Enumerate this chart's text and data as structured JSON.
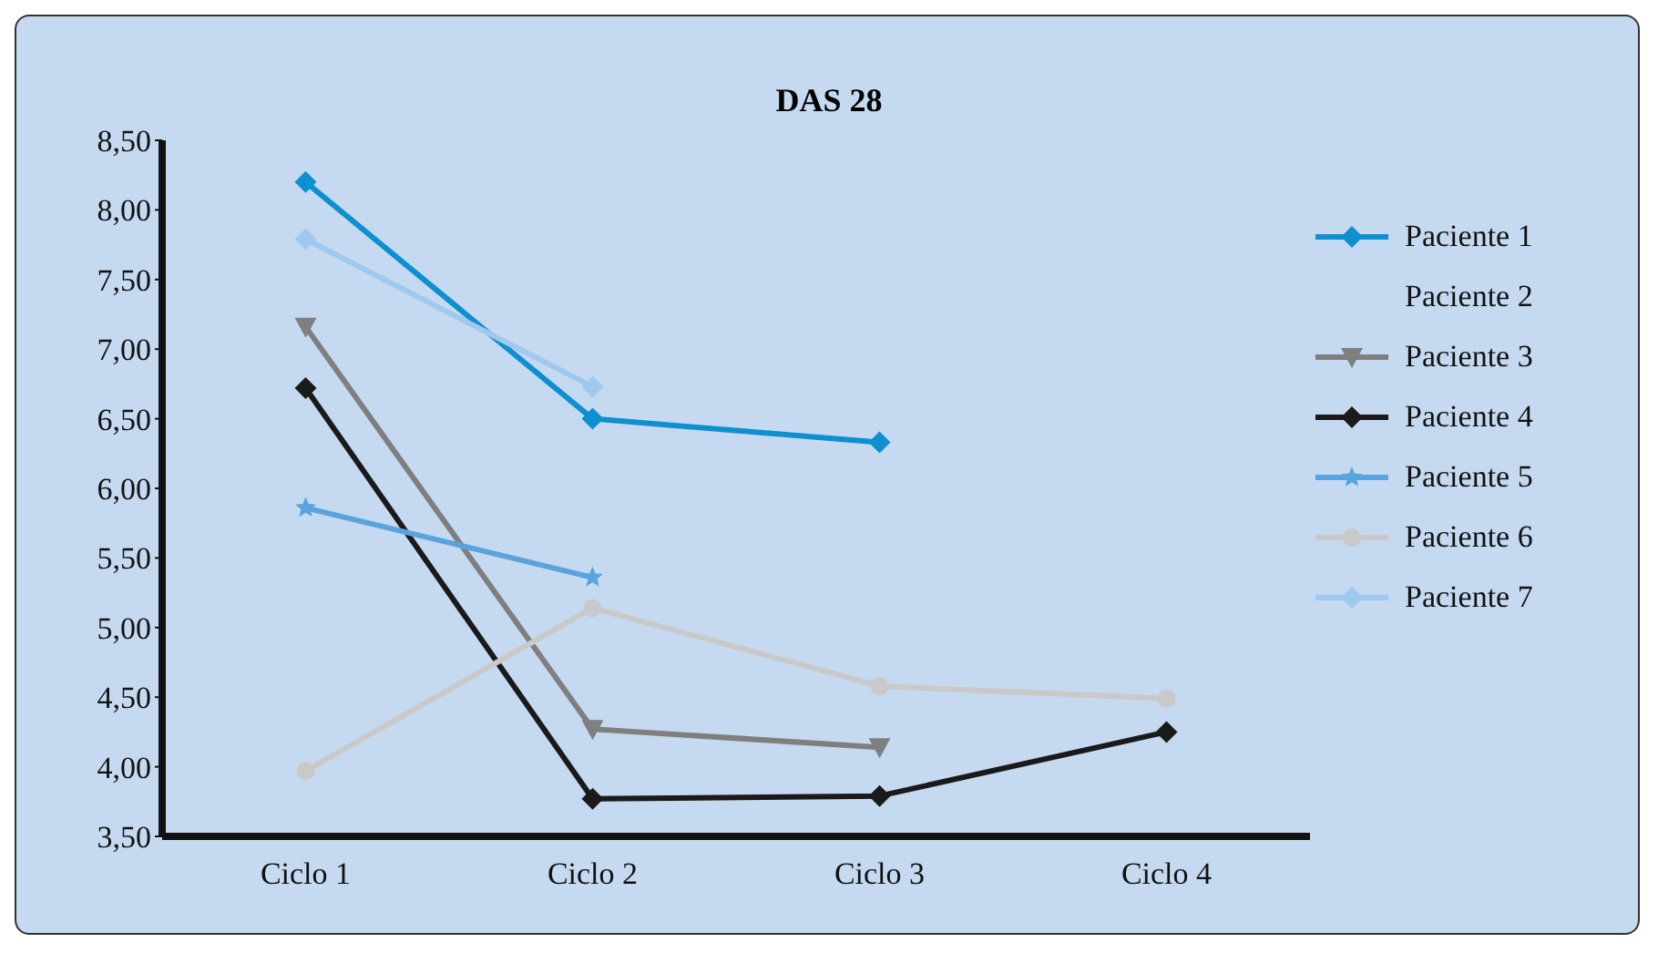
{
  "chart_data": {
    "type": "line",
    "title": "DAS 28",
    "categories": [
      "Ciclo 1",
      "Ciclo 2",
      "Ciclo 3",
      "Ciclo 4"
    ],
    "series": [
      {
        "name": "Paciente 1",
        "color": "#0e8fd0",
        "marker": "diamond",
        "values": [
          8.2,
          6.5,
          6.33,
          null
        ]
      },
      {
        "name": "Paciente 2",
        "marker": "none",
        "values": [
          null,
          null,
          null,
          null
        ]
      },
      {
        "name": "Paciente 3",
        "color": "#7f7f7f",
        "marker": "triangle",
        "values": [
          7.16,
          4.27,
          4.14,
          null
        ]
      },
      {
        "name": "Paciente 4",
        "color": "#1a1a1a",
        "marker": "diamond",
        "values": [
          6.72,
          3.77,
          3.79,
          4.25
        ]
      },
      {
        "name": "Paciente 5",
        "color": "#5aa3dc",
        "marker": "star",
        "values": [
          5.86,
          5.36,
          null,
          null
        ]
      },
      {
        "name": "Paciente 6",
        "color": "#c9c9c9",
        "marker": "circle",
        "values": [
          3.97,
          5.14,
          4.58,
          4.49
        ]
      },
      {
        "name": "Paciente 7",
        "color": "#9fc9ee",
        "marker": "diamond",
        "values": [
          7.79,
          6.73,
          null,
          null
        ]
      }
    ],
    "ylim": [
      3.5,
      8.5
    ],
    "yticks": [
      {
        "value": 3.5,
        "label": "3,50"
      },
      {
        "value": 4,
        "label": "4,00"
      },
      {
        "value": 4.5,
        "label": "4,50"
      },
      {
        "value": 5,
        "label": "5,00"
      },
      {
        "value": 5.5,
        "label": "5,50"
      },
      {
        "value": 6,
        "label": "6,00"
      },
      {
        "value": 6.5,
        "label": "6,50"
      },
      {
        "value": 7,
        "label": "7,00"
      },
      {
        "value": 7.5,
        "label": "7,50"
      },
      {
        "value": 8,
        "label": "8,00"
      },
      {
        "value": 8.5,
        "label": "8,50"
      }
    ],
    "grid": false,
    "legend": "right",
    "line_style": "solid"
  }
}
